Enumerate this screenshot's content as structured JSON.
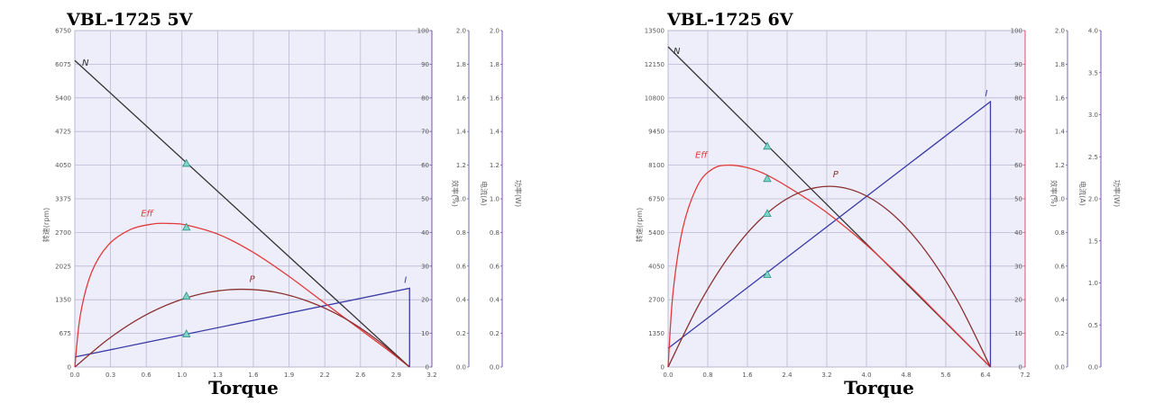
{
  "chart_data": [
    {
      "type": "line",
      "title": "VBL-1725     5V",
      "xlabel": "Torque",
      "ylabel": "转速(rpm)",
      "right_axis_labels": [
        "效率(%)",
        "电流(A)",
        "功率(W)"
      ],
      "x_ticks": [
        "0.0",
        "0.3",
        "0.6",
        "1.0",
        "1.3",
        "1.6",
        "1.9",
        "2.2",
        "2.6",
        "2.9",
        "3.2"
      ],
      "xlim": [
        0,
        3.2
      ],
      "y_ticks": [
        "0",
        "675",
        "1350",
        "2025",
        "2700",
        "3375",
        "4050",
        "4725",
        "5400",
        "6075",
        "6750"
      ],
      "ylim": [
        0,
        6750
      ],
      "right_ticks_1": [
        "0",
        "10",
        "20",
        "30",
        "40",
        "50",
        "60",
        "70",
        "80",
        "90",
        "100"
      ],
      "right_ticks_2": [
        "0.0",
        "0.2",
        "0.4",
        "0.6",
        "0.8",
        "1.0",
        "1.2",
        "1.4",
        "1.6",
        "1.8",
        "2.0"
      ],
      "right_ticks_3": [
        "0.0",
        "0.2",
        "0.4",
        "0.6",
        "0.8",
        "1.0",
        "1.2",
        "1.4",
        "1.6",
        "1.8",
        "2.0"
      ],
      "grid": true,
      "stall_torque": 3.0,
      "series": [
        {
          "name": "N",
          "color": "#333333",
          "x": [
            0,
            3.0
          ],
          "y": [
            6150,
            0
          ]
        },
        {
          "name": "I",
          "color": "#3a3aa8",
          "x": [
            0,
            3.0
          ],
          "y": [
            200,
            1580
          ]
        },
        {
          "name": "Eff",
          "color": "#e03a3a",
          "x": [
            0,
            0.05,
            0.15,
            0.3,
            0.5,
            0.7,
            0.85,
            1.0,
            1.3,
            1.6,
            1.9,
            2.2,
            2.5,
            2.8,
            3.0
          ],
          "y": [
            0,
            1050,
            1900,
            2450,
            2760,
            2870,
            2880,
            2850,
            2650,
            2300,
            1850,
            1350,
            850,
            350,
            0
          ]
        },
        {
          "name": "P",
          "color": "#8a3030",
          "x": [
            0,
            0.3,
            0.6,
            0.9,
            1.2,
            1.5,
            1.8,
            2.1,
            2.4,
            2.7,
            3.0
          ],
          "y": [
            0,
            560,
            1000,
            1310,
            1500,
            1560,
            1500,
            1310,
            1000,
            560,
            0
          ]
        }
      ],
      "markers": [
        {
          "x": 1.0,
          "y": 4080
        },
        {
          "x": 1.0,
          "y": 2800
        },
        {
          "x": 1.0,
          "y": 1420
        },
        {
          "x": 1.0,
          "y": 660
        }
      ]
    },
    {
      "type": "line",
      "title": "VBL-1725     6V",
      "xlabel": "Torque",
      "ylabel": "转速(rpm)",
      "right_axis_labels": [
        "效率(%)",
        "电流(A)",
        "功率(W)"
      ],
      "x_ticks": [
        "0.0",
        "0.8",
        "1.6",
        "2.4",
        "3.2",
        "4.0",
        "4.8",
        "5.6",
        "6.4",
        "7.2"
      ],
      "xlim": [
        0,
        7.2
      ],
      "y_ticks": [
        "0",
        "1350",
        "2700",
        "4050",
        "5400",
        "6750",
        "8100",
        "9450",
        "10800",
        "12150",
        "13500"
      ],
      "ylim": [
        0,
        13500
      ],
      "right_ticks_1": [
        "0",
        "10",
        "20",
        "30",
        "40",
        "50",
        "60",
        "70",
        "80",
        "90",
        "100"
      ],
      "right_ticks_2": [
        "0.0",
        "0.2",
        "0.4",
        "0.6",
        "0.8",
        "1.0",
        "1.2",
        "1.4",
        "1.6",
        "1.8",
        "2.0"
      ],
      "right_ticks_3": [
        "0.0",
        "0.5",
        "1.0",
        "1.5",
        "2.0",
        "2.5",
        "3.0",
        "3.5",
        "4.0"
      ],
      "grid": true,
      "stall_torque": 6.5,
      "series": [
        {
          "name": "N",
          "color": "#333333",
          "x": [
            0,
            6.5
          ],
          "y": [
            12850,
            0
          ]
        },
        {
          "name": "I",
          "color": "#3a3aa8",
          "x": [
            0,
            6.5
          ],
          "y": [
            750,
            10650
          ]
        },
        {
          "name": "Eff",
          "color": "#e03a3a",
          "x": [
            0,
            0.1,
            0.3,
            0.6,
            0.9,
            1.2,
            1.6,
            2.0,
            2.6,
            3.2,
            4.0,
            4.8,
            5.6,
            6.5
          ],
          "y": [
            0,
            3000,
            5600,
            7300,
            7950,
            8100,
            8000,
            7700,
            7000,
            6200,
            4900,
            3400,
            1800,
            0
          ]
        },
        {
          "name": "P",
          "color": "#8a3030",
          "x": [
            0,
            0.65,
            1.3,
            1.95,
            2.6,
            3.25,
            3.9,
            4.55,
            5.2,
            5.85,
            6.5
          ],
          "y": [
            0,
            2610,
            4640,
            6090,
            6960,
            7250,
            6960,
            6090,
            4640,
            2610,
            0
          ]
        }
      ],
      "markers": [
        {
          "x": 2.0,
          "y": 8850
        },
        {
          "x": 2.0,
          "y": 7550
        },
        {
          "x": 2.0,
          "y": 6150
        },
        {
          "x": 2.0,
          "y": 3700
        }
      ]
    }
  ]
}
